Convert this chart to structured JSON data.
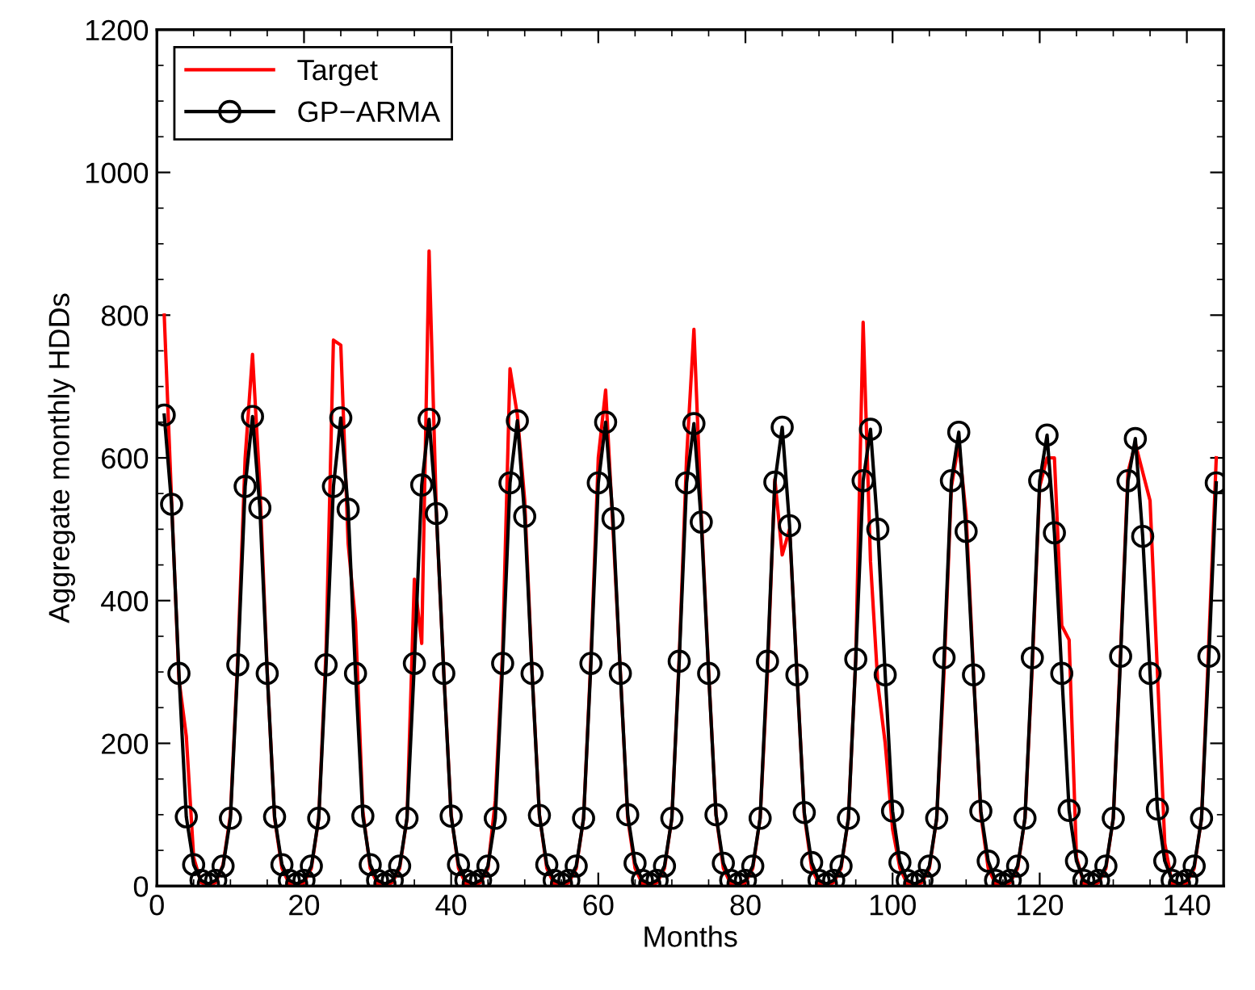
{
  "chart_data": {
    "type": "line",
    "xlabel": "Months",
    "ylabel": "Aggregate monthly HDDs",
    "x": [
      1,
      2,
      3,
      4,
      5,
      6,
      7,
      8,
      9,
      10,
      11,
      12,
      13,
      14,
      15,
      16,
      17,
      18,
      19,
      20,
      21,
      22,
      23,
      24,
      25,
      26,
      27,
      28,
      29,
      30,
      31,
      32,
      33,
      34,
      35,
      36,
      37,
      38,
      39,
      40,
      41,
      42,
      43,
      44,
      45,
      46,
      47,
      48,
      49,
      50,
      51,
      52,
      53,
      54,
      55,
      56,
      57,
      58,
      59,
      60,
      61,
      62,
      63,
      64,
      65,
      66,
      67,
      68,
      69,
      70,
      71,
      72,
      73,
      74,
      75,
      76,
      77,
      78,
      79,
      80,
      81,
      82,
      83,
      84,
      85,
      86,
      87,
      88,
      89,
      90,
      91,
      92,
      93,
      94,
      95,
      96,
      97,
      98,
      99,
      100,
      101,
      102,
      103,
      104,
      105,
      106,
      107,
      108,
      109,
      110,
      111,
      112,
      113,
      114,
      115,
      116,
      117,
      118,
      119,
      120,
      121,
      122,
      123,
      124,
      125,
      126,
      127,
      128,
      129,
      130,
      131,
      132,
      133,
      134,
      135,
      136,
      137,
      138,
      139,
      140,
      141,
      142,
      143,
      144
    ],
    "series": [
      {
        "name": "Target",
        "color": "#ff0000",
        "marker": "none",
        "values": [
          800,
          540,
          290,
          210,
          40,
          5,
          0,
          5,
          30,
          100,
          320,
          600,
          745,
          560,
          300,
          95,
          25,
          3,
          0,
          5,
          25,
          95,
          330,
          765,
          758,
          480,
          370,
          105,
          25,
          3,
          0,
          5,
          25,
          95,
          430,
          340,
          890,
          520,
          300,
          100,
          25,
          3,
          0,
          5,
          25,
          120,
          330,
          725,
          660,
          540,
          300,
          100,
          25,
          3,
          0,
          5,
          25,
          95,
          320,
          600,
          695,
          500,
          300,
          95,
          25,
          3,
          0,
          5,
          25,
          95,
          320,
          600,
          780,
          520,
          300,
          100,
          25,
          3,
          0,
          5,
          25,
          95,
          300,
          570,
          464,
          500,
          300,
          100,
          25,
          3,
          0,
          5,
          25,
          95,
          320,
          790,
          455,
          283,
          200,
          80,
          25,
          3,
          0,
          5,
          25,
          95,
          300,
          560,
          620,
          520,
          300,
          100,
          25,
          3,
          0,
          5,
          25,
          95,
          310,
          560,
          600,
          600,
          365,
          345,
          40,
          3,
          0,
          5,
          25,
          95,
          330,
          580,
          620,
          580,
          540,
          300,
          60,
          3,
          0,
          5,
          25,
          95,
          345,
          600
        ]
      },
      {
        "name": "GP−ARMA",
        "color": "#000000",
        "marker": "circle",
        "values": [
          660,
          535,
          298,
          97,
          30,
          8,
          3,
          8,
          28,
          95,
          310,
          560,
          658,
          530,
          298,
          97,
          30,
          8,
          3,
          8,
          28,
          95,
          310,
          560,
          656,
          528,
          298,
          98,
          30,
          8,
          3,
          8,
          28,
          95,
          312,
          562,
          654,
          522,
          298,
          98,
          30,
          8,
          3,
          8,
          28,
          95,
          312,
          565,
          652,
          518,
          298,
          99,
          30,
          8,
          3,
          8,
          28,
          95,
          312,
          565,
          650,
          515,
          298,
          100,
          32,
          8,
          3,
          8,
          28,
          95,
          315,
          565,
          648,
          510,
          298,
          100,
          32,
          8,
          3,
          8,
          28,
          95,
          315,
          566,
          643,
          505,
          296,
          103,
          33,
          8,
          3,
          8,
          28,
          95,
          318,
          568,
          640,
          500,
          296,
          105,
          33,
          8,
          3,
          8,
          28,
          95,
          320,
          568,
          636,
          497,
          296,
          105,
          35,
          8,
          3,
          8,
          28,
          95,
          320,
          568,
          632,
          495,
          298,
          106,
          35,
          8,
          3,
          8,
          28,
          95,
          322,
          568,
          627,
          490,
          298,
          108,
          35,
          8,
          3,
          8,
          28,
          95,
          322,
          565
        ]
      }
    ],
    "xlim": [
      0,
      145
    ],
    "xticks": [
      0,
      20,
      40,
      60,
      80,
      100,
      120,
      140
    ],
    "ylim": [
      0,
      1200
    ],
    "yticks": [
      0,
      200,
      400,
      600,
      800,
      1000,
      1200
    ],
    "grid": false,
    "legend": "top left",
    "line_style": "solid"
  }
}
